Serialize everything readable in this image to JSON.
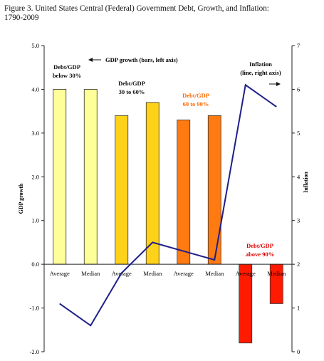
{
  "figure": {
    "title_line1": "Figure 3.  United States Central (Federal) Government Debt, Growth, and Inflation:",
    "title_line2": "1790-2009"
  },
  "chart_data": {
    "type": "bar",
    "categories": [
      "Average",
      "Median",
      "Average",
      "Median",
      "Average",
      "Median",
      "Average",
      "Median"
    ],
    "groups": [
      {
        "label_lines": [
          "Debt/GDP",
          "below 30%"
        ],
        "color": "#ffff99",
        "text_color": "#111111",
        "categories": [
          0,
          1
        ]
      },
      {
        "label_lines": [
          "Debt/GDP",
          "30 to 60%"
        ],
        "color": "#ffd21a",
        "text_color": "#111111",
        "categories": [
          2,
          3
        ]
      },
      {
        "label_lines": [
          "Debt/GDP",
          "60 to 90%"
        ],
        "color": "#ff7a10",
        "text_color": "#ff6a00",
        "categories": [
          4,
          5
        ]
      },
      {
        "label_lines": [
          "Debt/GDP",
          "above 90%"
        ],
        "color": "#ff1a00",
        "text_color": "#e00000",
        "categories": [
          6,
          7
        ]
      }
    ],
    "series": [
      {
        "name": "GDP growth (bars, left axis)",
        "kind": "bar",
        "axis": "left",
        "values": [
          4.0,
          4.0,
          3.4,
          3.7,
          3.3,
          3.4,
          -1.8,
          -0.9
        ]
      },
      {
        "name": "Inflation (line, right axis)",
        "kind": "line",
        "axis": "right",
        "color": "#1f1f8a",
        "values": [
          1.1,
          0.6,
          1.8,
          2.5,
          2.3,
          2.1,
          6.1,
          5.6
        ]
      }
    ],
    "left_axis": {
      "label": "GDP growth",
      "range": [
        -2.0,
        5.0
      ],
      "ticks": [
        "-2.0",
        "-1.0",
        "0.0",
        "1.0",
        "2.0",
        "3.0",
        "4.0",
        "5.0"
      ]
    },
    "right_axis": {
      "label": "Inflation",
      "range": [
        0,
        7
      ],
      "ticks": [
        "0",
        "1",
        "2",
        "3",
        "4",
        "5",
        "6",
        "7"
      ]
    },
    "annotations": {
      "gdp_arrow_label": "GDP growth (bars, left axis)",
      "inflation_label_line1": "Inflation",
      "inflation_label_line2": "(line, right axis)"
    }
  }
}
